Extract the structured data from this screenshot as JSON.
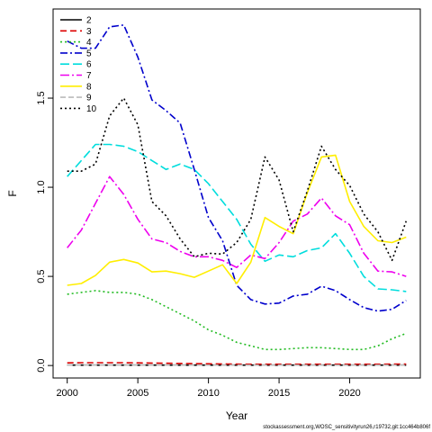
{
  "chart_data": {
    "type": "line",
    "title": "",
    "xlabel": "Year",
    "ylabel": "F",
    "xlim": [
      1999,
      2025
    ],
    "ylim": [
      -0.07,
      2.0
    ],
    "xticks": [
      2000,
      2005,
      2010,
      2015,
      2020
    ],
    "yticks": [
      0.0,
      0.5,
      1.0,
      1.5
    ],
    "ytick_labels": [
      "0.0",
      "0.5",
      "1.0",
      "1.5"
    ],
    "grid": false,
    "legend_position": "top-left",
    "x": [
      2000,
      2001,
      2002,
      2003,
      2004,
      2005,
      2006,
      2007,
      2008,
      2009,
      2010,
      2011,
      2012,
      2013,
      2014,
      2015,
      2016,
      2017,
      2018,
      2019,
      2020,
      2021,
      2022,
      2023,
      2024
    ],
    "series": [
      {
        "name": "2",
        "color": "#000000",
        "dash": "solid",
        "values": [
          0.002,
          0.002,
          0.002,
          0.002,
          0.002,
          0.002,
          0.002,
          0.002,
          0.002,
          0.002,
          0.002,
          0.002,
          0.002,
          0.002,
          0.002,
          0.002,
          0.002,
          0.002,
          0.002,
          0.002,
          0.002,
          0.002,
          0.002,
          0.002,
          0.002
        ]
      },
      {
        "name": "3",
        "color": "#dd0000",
        "dash": "7,4",
        "values": [
          0.015,
          0.016,
          0.016,
          0.016,
          0.016,
          0.015,
          0.014,
          0.013,
          0.012,
          0.011,
          0.01,
          0.009,
          0.008,
          0.007,
          0.007,
          0.007,
          0.007,
          0.007,
          0.007,
          0.007,
          0.007,
          0.007,
          0.007,
          0.008,
          0.008
        ]
      },
      {
        "name": "4",
        "color": "#22bb22",
        "dash": "2,3",
        "values": [
          0.4,
          0.41,
          0.42,
          0.41,
          0.41,
          0.4,
          0.37,
          0.33,
          0.29,
          0.25,
          0.2,
          0.17,
          0.13,
          0.11,
          0.09,
          0.09,
          0.095,
          0.1,
          0.1,
          0.095,
          0.09,
          0.09,
          0.11,
          0.15,
          0.18
        ]
      },
      {
        "name": "5",
        "color": "#0000cc",
        "dash": "8,3,2,3",
        "values": [
          1.82,
          1.78,
          1.78,
          1.9,
          1.91,
          1.73,
          1.49,
          1.43,
          1.36,
          1.1,
          0.83,
          0.7,
          0.45,
          0.37,
          0.345,
          0.35,
          0.39,
          0.4,
          0.445,
          0.42,
          0.37,
          0.325,
          0.305,
          0.315,
          0.365
        ]
      },
      {
        "name": "6",
        "color": "#00dddd",
        "dash": "10,4",
        "values": [
          1.06,
          1.15,
          1.24,
          1.24,
          1.23,
          1.2,
          1.15,
          1.1,
          1.13,
          1.1,
          1.02,
          0.92,
          0.82,
          0.68,
          0.585,
          0.62,
          0.61,
          0.645,
          0.66,
          0.74,
          0.63,
          0.5,
          0.43,
          0.425,
          0.415
        ]
      },
      {
        "name": "7",
        "color": "#ee00ee",
        "dash": "10,3,2,3",
        "values": [
          0.66,
          0.76,
          0.91,
          1.06,
          0.96,
          0.82,
          0.71,
          0.69,
          0.64,
          0.61,
          0.61,
          0.59,
          0.55,
          0.62,
          0.6,
          0.69,
          0.81,
          0.85,
          0.94,
          0.84,
          0.79,
          0.63,
          0.53,
          0.525,
          0.5
        ]
      },
      {
        "name": "8",
        "color": "#ffee00",
        "dash": "solid",
        "values": [
          0.45,
          0.46,
          0.505,
          0.58,
          0.595,
          0.575,
          0.525,
          0.53,
          0.515,
          0.495,
          0.53,
          0.565,
          0.46,
          0.58,
          0.83,
          0.78,
          0.74,
          0.97,
          1.17,
          1.18,
          0.92,
          0.78,
          0.7,
          0.69,
          0.72
        ]
      },
      {
        "name": "9",
        "color": "#bbbbbb",
        "dash": "6,3",
        "values": [
          0.002,
          0.002,
          0.002,
          0.002,
          0.002,
          0.002,
          0.002,
          0.002,
          0.002,
          0.002,
          0.002,
          0.002,
          0.002,
          0.002,
          0.002,
          0.002,
          0.002,
          0.002,
          0.002,
          0.002,
          0.002,
          0.002,
          0.002,
          0.002,
          0.002
        ]
      },
      {
        "name": "10",
        "color": "#000000",
        "dash": "2,3",
        "values": [
          1.09,
          1.09,
          1.13,
          1.4,
          1.5,
          1.35,
          0.92,
          0.84,
          0.71,
          0.61,
          0.63,
          0.625,
          0.69,
          0.82,
          1.17,
          1.04,
          0.75,
          0.98,
          1.23,
          1.1,
          1.01,
          0.85,
          0.75,
          0.59,
          0.81
        ]
      }
    ]
  },
  "credit": "stockassessment.org,WOSC_sensitivityrun26,r19732,git:1cc464b806f"
}
